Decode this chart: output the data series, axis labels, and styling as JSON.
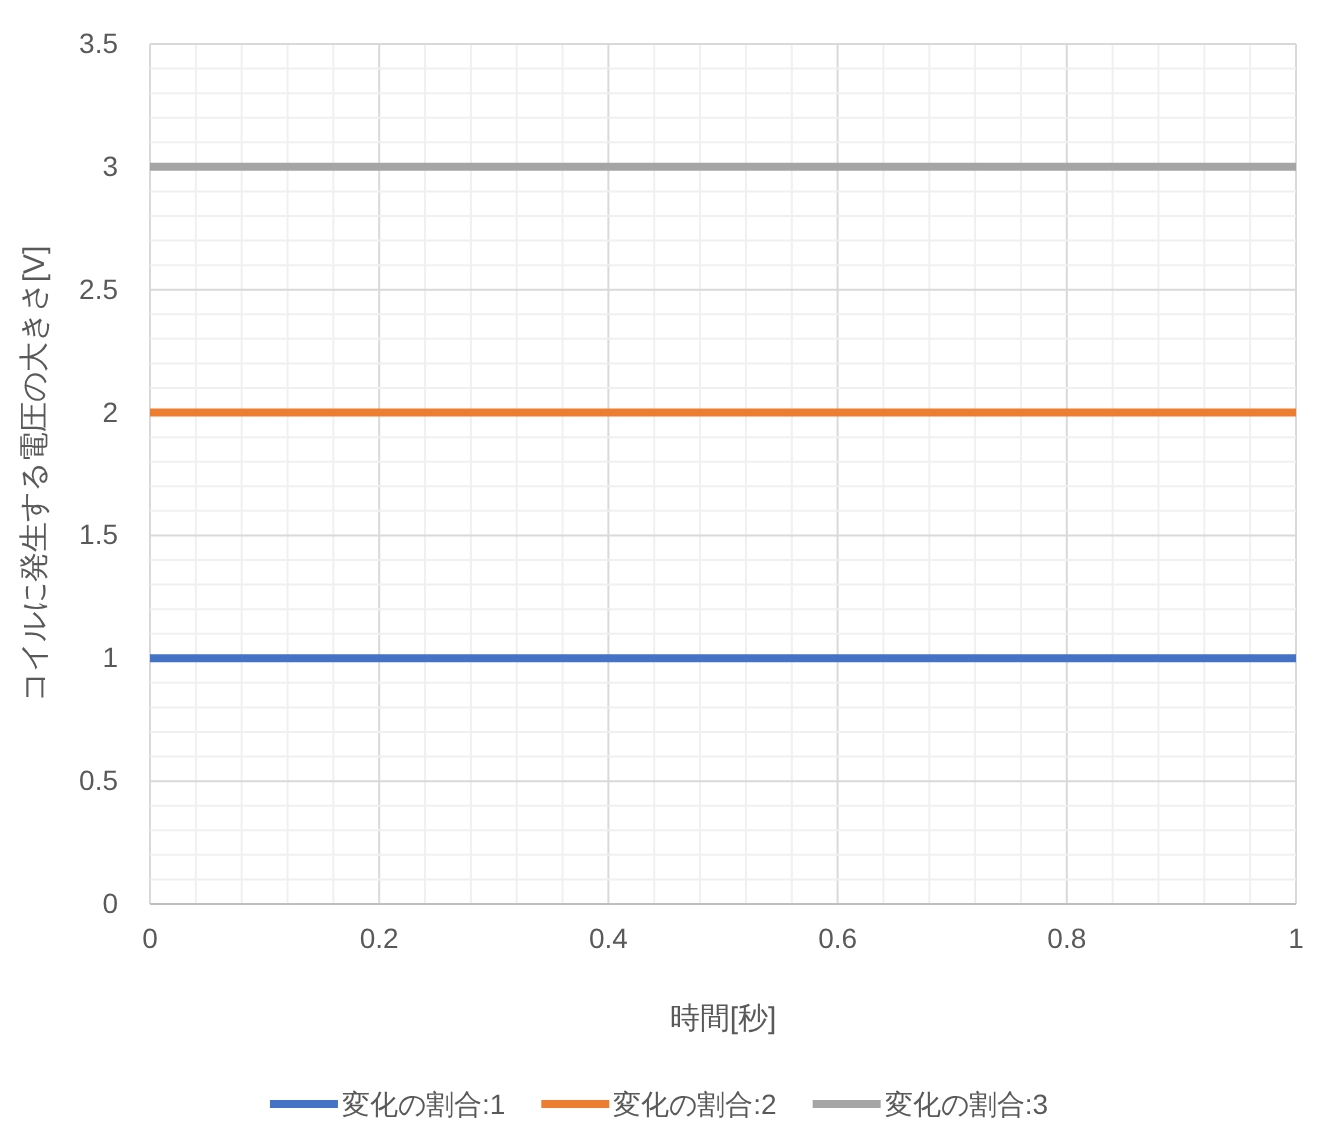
{
  "chart_data": {
    "type": "line",
    "xlabel": "時間[秒]",
    "ylabel": "コイルに発生する電圧の大きさ[V]",
    "x": [
      0,
      1
    ],
    "series": [
      {
        "name": "変化の割合:1",
        "color": "#4472c4",
        "values": [
          1,
          1
        ]
      },
      {
        "name": "変化の割合:2",
        "color": "#ed7d31",
        "values": [
          2,
          2
        ]
      },
      {
        "name": "変化の割合:3",
        "color": "#a5a5a5",
        "values": [
          3,
          3
        ]
      }
    ],
    "xlim": [
      0,
      1
    ],
    "xticks": [
      0,
      {
        "value": 0.04,
        "label": null
      },
      {
        "value": 0.08,
        "label": null
      },
      {
        "value": 0.12,
        "label": null
      },
      {
        "value": 0.16,
        "label": null
      },
      0.2,
      {
        "value": 0.24,
        "label": null
      },
      {
        "value": 0.28,
        "label": null
      },
      {
        "value": 0.32,
        "label": null
      },
      {
        "value": 0.36,
        "label": null
      },
      0.4,
      {
        "value": 0.44,
        "label": null
      },
      {
        "value": 0.48,
        "label": null
      },
      {
        "value": 0.52,
        "label": null
      },
      {
        "value": 0.56,
        "label": null
      },
      0.6,
      {
        "value": 0.64,
        "label": null
      },
      {
        "value": 0.68,
        "label": null
      },
      {
        "value": 0.72,
        "label": null
      },
      {
        "value": 0.76,
        "label": null
      },
      0.8,
      {
        "value": 0.84,
        "label": null
      },
      {
        "value": 0.88,
        "label": null
      },
      {
        "value": 0.92,
        "label": null
      },
      {
        "value": 0.96,
        "label": null
      },
      1
    ],
    "ylim": [
      0,
      3.5
    ],
    "yticks": [
      0,
      {
        "value": 0.1,
        "label": null
      },
      {
        "value": 0.2,
        "label": null
      },
      {
        "value": 0.3,
        "label": null
      },
      {
        "value": 0.4,
        "label": null
      },
      0.5,
      {
        "value": 0.6,
        "label": null
      },
      {
        "value": 0.7,
        "label": null
      },
      {
        "value": 0.8,
        "label": null
      },
      {
        "value": 0.9,
        "label": null
      },
      1,
      {
        "value": 1.1,
        "label": null
      },
      {
        "value": 1.2,
        "label": null
      },
      {
        "value": 1.3,
        "label": null
      },
      {
        "value": 1.4,
        "label": null
      },
      1.5,
      {
        "value": 1.6,
        "label": null
      },
      {
        "value": 1.7,
        "label": null
      },
      {
        "value": 1.8,
        "label": null
      },
      {
        "value": 1.9,
        "label": null
      },
      2,
      {
        "value": 2.1,
        "label": null
      },
      {
        "value": 2.2,
        "label": null
      },
      {
        "value": 2.3,
        "label": null
      },
      {
        "value": 2.4,
        "label": null
      },
      2.5,
      {
        "value": 2.6,
        "label": null
      },
      {
        "value": 2.7,
        "label": null
      },
      {
        "value": 2.8,
        "label": null
      },
      {
        "value": 2.9,
        "label": null
      },
      3,
      {
        "value": 3.1,
        "label": null
      },
      {
        "value": 3.2,
        "label": null
      },
      {
        "value": 3.3,
        "label": null
      },
      {
        "value": 3.4,
        "label": null
      },
      3.5
    ],
    "grid": true,
    "legend": "bottom",
    "marker": "none",
    "line_style": "solid"
  }
}
